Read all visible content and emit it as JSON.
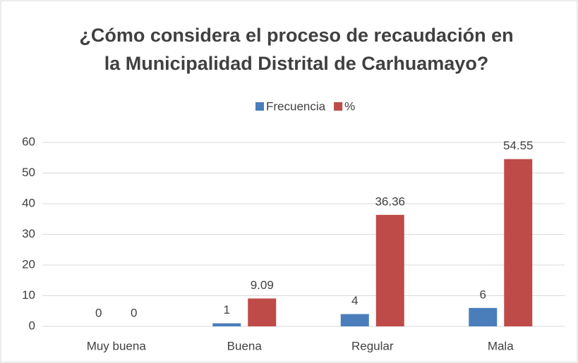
{
  "chart_data": {
    "type": "bar",
    "title": [
      "¿Cómo considera el proceso de recaudación en",
      "la Municipalidad Distrital de Carhuamayo?"
    ],
    "categories": [
      "Muy buena",
      "Buena",
      "Regular",
      "Mala"
    ],
    "series": [
      {
        "name": "Frecuencia",
        "color": "#4a7ebb",
        "values": [
          0,
          1,
          4,
          6
        ]
      },
      {
        "name": "%",
        "color": "#be4b48",
        "values": [
          0,
          9.09,
          36.36,
          54.55
        ]
      }
    ],
    "ylim": [
      0,
      60
    ],
    "yticks": [
      0,
      10,
      20,
      30,
      40,
      50,
      60
    ],
    "grid": true,
    "legend": "top"
  }
}
